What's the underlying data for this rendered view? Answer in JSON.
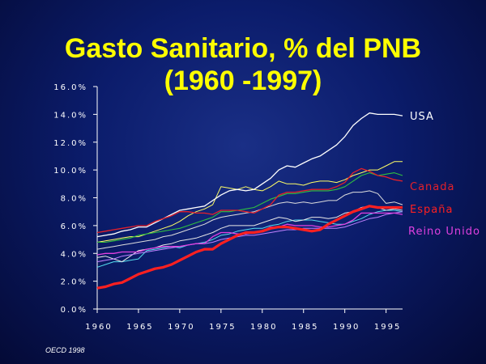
{
  "chart_data": {
    "type": "line",
    "title": "Gasto Sanitario, % del PNB",
    "subtitle": "(1960 -1997)",
    "source": "OECD 1998",
    "xlim": [
      1960,
      1997
    ],
    "ylim": [
      0,
      16
    ],
    "x_ticks": [
      1960,
      1965,
      1970,
      1975,
      1980,
      1985,
      1990,
      1995
    ],
    "y_ticks": [
      "0.0%",
      "2.0%",
      "4.0%",
      "6.0%",
      "8.0%",
      "10.0%",
      "12.0%",
      "14.0%",
      "16.0%"
    ],
    "grid": false,
    "x": [
      1960,
      1961,
      1962,
      1963,
      1964,
      1965,
      1966,
      1967,
      1968,
      1969,
      1970,
      1971,
      1972,
      1973,
      1974,
      1975,
      1976,
      1977,
      1978,
      1979,
      1980,
      1981,
      1982,
      1983,
      1984,
      1985,
      1986,
      1987,
      1988,
      1989,
      1990,
      1991,
      1992,
      1993,
      1994,
      1995,
      1996,
      1997
    ],
    "series": [
      {
        "name": "USA",
        "color": "#ffffff",
        "width": 1.3,
        "values": [
          5.2,
          5.3,
          5.4,
          5.6,
          5.7,
          5.9,
          5.9,
          6.2,
          6.5,
          6.8,
          7.1,
          7.2,
          7.3,
          7.4,
          7.8,
          8.2,
          8.5,
          8.6,
          8.5,
          8.6,
          9.0,
          9.4,
          10.0,
          10.3,
          10.2,
          10.5,
          10.8,
          11.0,
          11.4,
          11.8,
          12.4,
          13.2,
          13.7,
          14.1,
          14.0,
          14.0,
          14.0,
          13.9
        ]
      },
      {
        "name": "Canada",
        "color": "#e4202a",
        "width": 1.3,
        "values": [
          5.5,
          5.6,
          5.7,
          5.8,
          5.9,
          6.0,
          6.0,
          6.3,
          6.5,
          6.7,
          7.0,
          7.0,
          6.9,
          6.9,
          6.8,
          7.1,
          7.1,
          7.1,
          7.0,
          6.9,
          7.2,
          7.5,
          8.2,
          8.4,
          8.4,
          8.5,
          8.6,
          8.6,
          8.6,
          8.8,
          9.1,
          9.8,
          10.1,
          9.9,
          9.6,
          9.5,
          9.3,
          9.2
        ]
      },
      {
        "name": "España",
        "color": "#ff2020",
        "width": 3.2,
        "values": [
          1.5,
          1.6,
          1.8,
          1.9,
          2.2,
          2.5,
          2.7,
          2.9,
          3.0,
          3.2,
          3.5,
          3.8,
          4.1,
          4.3,
          4.3,
          4.7,
          5.0,
          5.3,
          5.5,
          5.5,
          5.6,
          5.8,
          5.9,
          5.9,
          5.8,
          5.7,
          5.6,
          5.7,
          6.1,
          6.4,
          6.7,
          7.0,
          7.2,
          7.4,
          7.3,
          7.3,
          7.3,
          7.3
        ]
      },
      {
        "name": "Reino Unido",
        "color": "#e040e0",
        "width": 1.3,
        "values": [
          3.9,
          4.0,
          4.0,
          4.1,
          4.1,
          4.1,
          4.3,
          4.4,
          4.5,
          4.5,
          4.5,
          4.6,
          4.7,
          4.7,
          5.2,
          5.5,
          5.5,
          5.4,
          5.4,
          5.5,
          5.6,
          5.9,
          5.9,
          6.1,
          6.0,
          6.0,
          6.0,
          5.9,
          5.9,
          6.0,
          6.1,
          6.4,
          6.9,
          6.9,
          6.9,
          6.9,
          6.9,
          6.8
        ]
      },
      {
        "color": "#ffff66",
        "width": 1.0,
        "values": [
          4.8,
          4.9,
          5.0,
          5.1,
          5.2,
          5.2,
          5.4,
          5.6,
          5.8,
          6.0,
          6.3,
          6.7,
          7.0,
          7.2,
          7.5,
          8.8,
          8.7,
          8.6,
          8.8,
          8.6,
          8.5,
          8.8,
          9.2,
          9.0,
          9.0,
          8.9,
          9.1,
          9.2,
          9.2,
          9.1,
          9.3,
          9.6,
          9.8,
          10.0,
          10.0,
          10.3,
          10.6,
          10.6
        ]
      },
      {
        "color": "#30c040",
        "width": 1.1,
        "values": [
          4.8,
          4.8,
          4.9,
          5.0,
          5.1,
          5.3,
          5.4,
          5.5,
          5.6,
          5.7,
          5.8,
          6.0,
          6.2,
          6.4,
          6.6,
          7.0,
          7.0,
          7.1,
          7.2,
          7.3,
          7.6,
          7.9,
          8.1,
          8.3,
          8.3,
          8.4,
          8.5,
          8.5,
          8.5,
          8.6,
          8.8,
          9.2,
          9.6,
          9.8,
          9.6,
          9.7,
          9.8,
          9.6
        ]
      },
      {
        "color": "#dddddd",
        "width": 1.0,
        "values": [
          4.3,
          4.4,
          4.5,
          4.6,
          4.7,
          4.8,
          4.9,
          5.0,
          5.2,
          5.3,
          5.5,
          5.7,
          5.9,
          6.1,
          6.4,
          6.6,
          6.7,
          6.8,
          6.9,
          7.0,
          7.2,
          7.4,
          7.6,
          7.7,
          7.6,
          7.7,
          7.6,
          7.7,
          7.8,
          7.8,
          8.2,
          8.4,
          8.4,
          8.5,
          8.3,
          7.6,
          7.7,
          7.5
        ]
      },
      {
        "color": "#55ddee",
        "width": 1.0,
        "values": [
          3.0,
          3.2,
          3.4,
          3.4,
          3.5,
          3.6,
          4.2,
          4.3,
          4.4,
          4.5,
          4.4,
          4.6,
          4.7,
          4.8,
          5.0,
          5.3,
          5.4,
          5.6,
          5.7,
          5.8,
          5.8,
          6.0,
          6.1,
          6.3,
          6.4,
          6.4,
          6.4,
          6.3,
          6.2,
          6.1,
          6.1,
          6.3,
          6.5,
          6.8,
          7.0,
          7.1,
          7.1,
          7.0
        ]
      },
      {
        "color": "#e8e8e8",
        "width": 1.0,
        "values": [
          3.7,
          3.8,
          3.6,
          3.4,
          3.8,
          4.2,
          4.3,
          4.4,
          4.6,
          4.7,
          4.9,
          5.0,
          5.1,
          5.3,
          5.5,
          5.8,
          6.0,
          6.0,
          6.0,
          6.0,
          6.2,
          6.4,
          6.6,
          6.5,
          6.3,
          6.4,
          6.6,
          6.6,
          6.5,
          6.6,
          6.9,
          7.0,
          7.3,
          7.4,
          7.3,
          7.1,
          7.2,
          7.1
        ]
      },
      {
        "color": "#c080ff",
        "width": 1.0,
        "values": [
          3.4,
          3.5,
          3.6,
          3.8,
          3.9,
          4.0,
          4.1,
          4.2,
          4.3,
          4.4,
          4.5,
          4.6,
          4.7,
          4.7,
          4.8,
          5.0,
          5.1,
          5.2,
          5.3,
          5.3,
          5.4,
          5.5,
          5.6,
          5.7,
          5.7,
          5.8,
          5.8,
          5.8,
          5.8,
          5.8,
          5.9,
          6.1,
          6.3,
          6.5,
          6.6,
          6.8,
          6.9,
          7.0
        ]
      }
    ]
  }
}
